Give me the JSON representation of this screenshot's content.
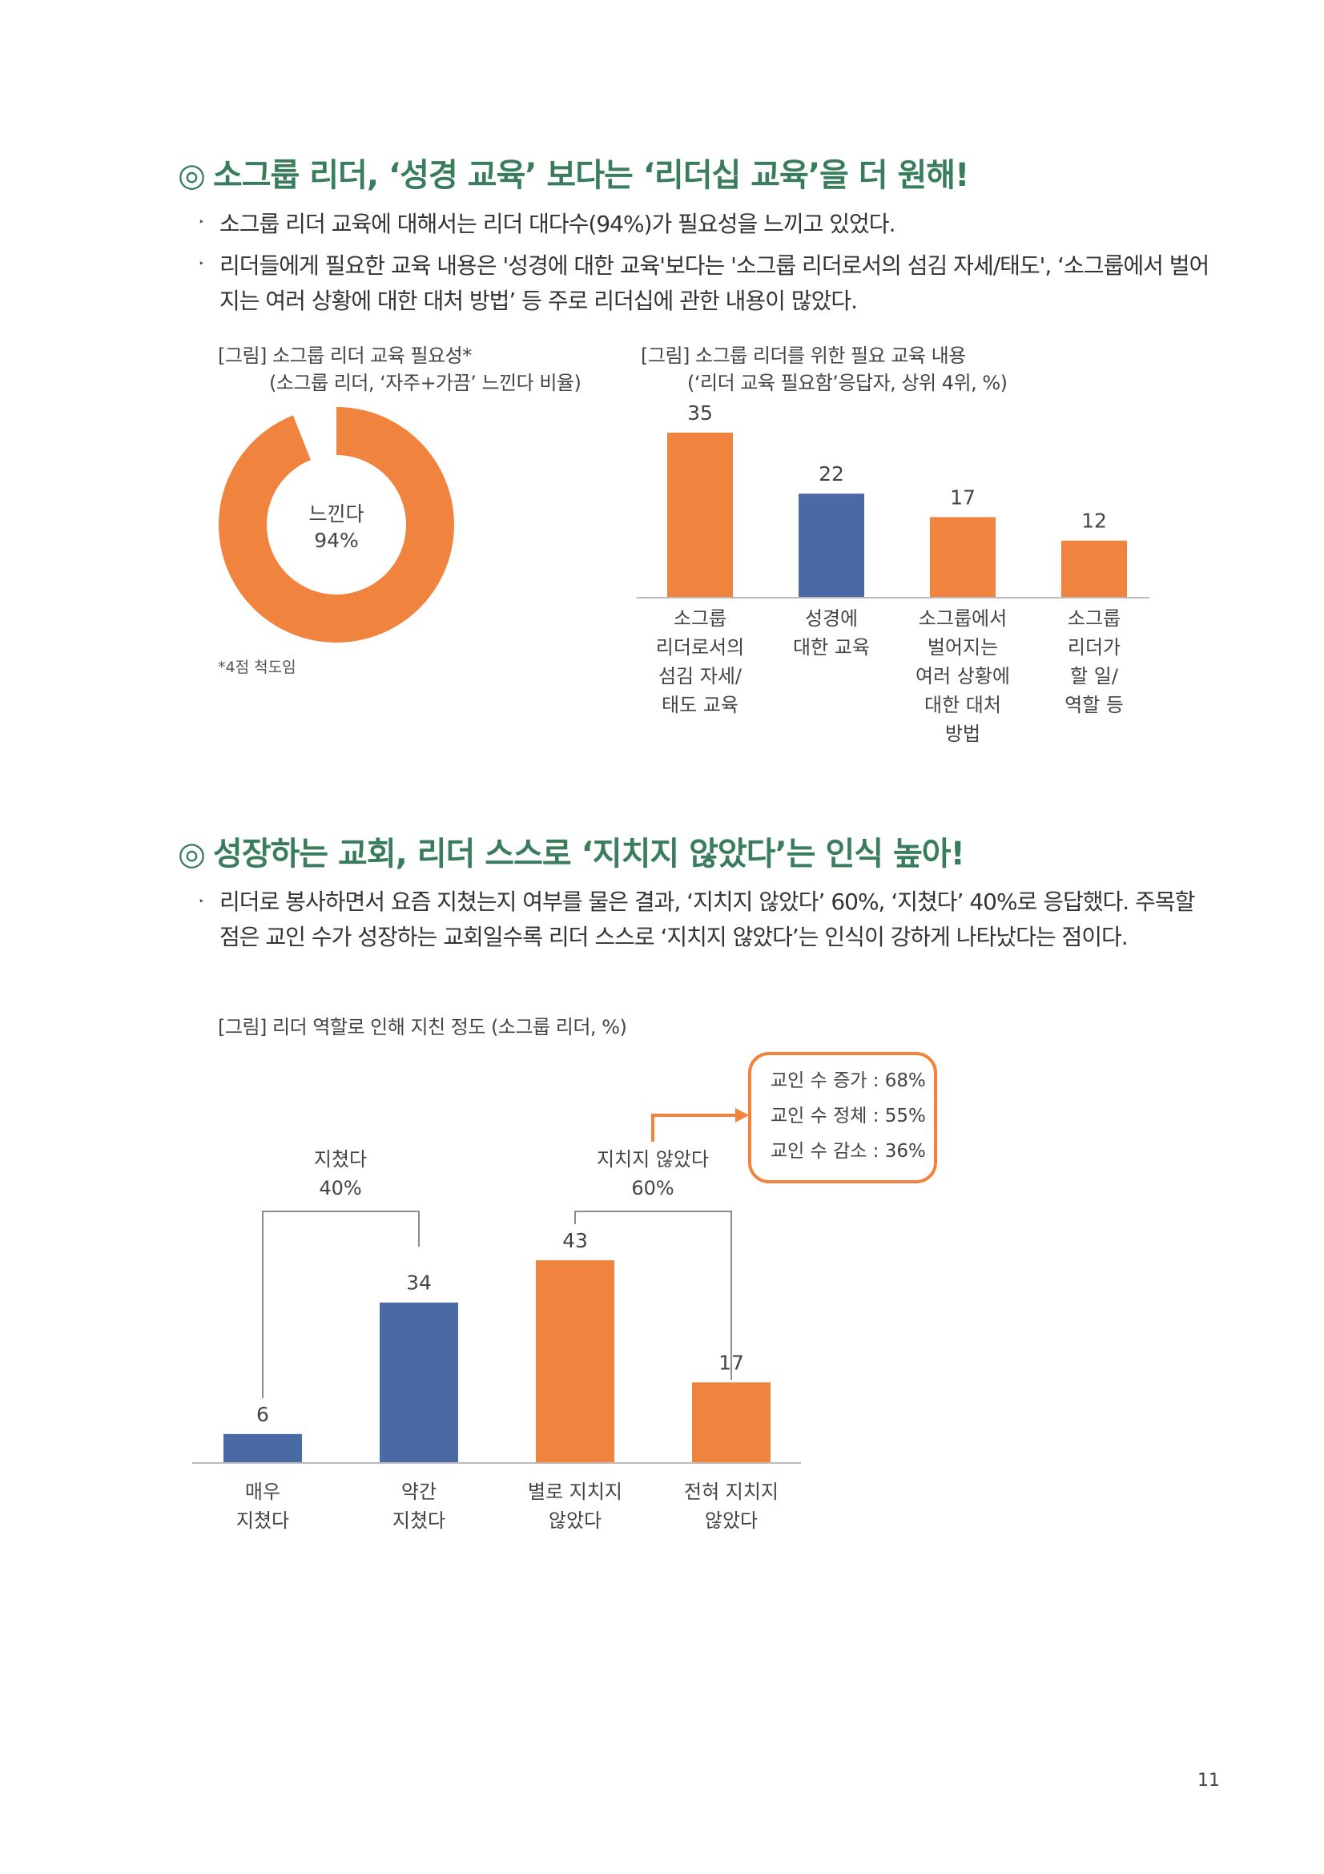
{
  "section1": {
    "mark": "◎",
    "title": "소그룹 리더, ‘성경 교육’ 보다는 ‘리더십 교육’을 더 원해!",
    "bullets": [
      "소그룹 리더 교육에 대해서는 리더 대다수(94%)가 필요성을 느끼고 있었다.",
      "리더들에게 필요한 교육 내용은 '성경에 대한 교육'보다는 '소그룹 리더로서의 섬김 자세/태도', ‘소그룹에서 벌어지는 여러 상황에 대한 대처 방법’ 등 주로 리더십에 관한 내용이 많았다."
    ],
    "bullet_glyph": "‣",
    "donut": {
      "caption_line1": "[그림] 소그룹 리더 교육 필요성*",
      "caption_line2": "(소그룹 리더, ‘자주+가끔’ 느낀다 비율)",
      "center_label": "느낀다",
      "center_value": "94%",
      "percent": 94,
      "color": "#f0843e",
      "footnote": "*4점 척도임"
    },
    "bar_chart": {
      "caption_line1": "[그림] 소그룹 리더를 위한 필요 교육 내용",
      "caption_line2": "(‘리더 교육 필요함’응답자, 상위 4위, %)"
    }
  },
  "section2": {
    "mark": "◎",
    "title": "성장하는 교회, 리더 스스로 ‘지치지 않았다’는 인식 높아!",
    "bullets": [
      "리더로 봉사하면서 요즘 지쳤는지 여부를 물은 결과, ‘지치지 않았다’ 60%, ‘지쳤다’ 40%로 응답했다. 주목할 점은 교인 수가 성장하는 교회일수록 리더 스스로 ‘지치지 않았다’는 인식이 강하게 나타났다는 점이다."
    ],
    "bullet_glyph": "‣",
    "bar_chart": {
      "caption": "[그림] 리더 역할로 인해 지친 정도 (소그룹 리더, %)",
      "group_left": {
        "label": "지쳤다",
        "value": "40%"
      },
      "group_right": {
        "label": "지치지 않았다",
        "value": "60%"
      },
      "callout": [
        "교인 수 증가 : 68%",
        "교인 수 정체 : 55%",
        "교인 수 감소 : 36%"
      ]
    }
  },
  "chart_data": [
    {
      "type": "pie",
      "title": "[그림] 소그룹 리더 교육 필요성*",
      "subtitle": "(소그룹 리더, ‘자주+가끔’ 느낀다 비율)",
      "categories": [
        "느낀다",
        ""
      ],
      "values": [
        94,
        6
      ]
    },
    {
      "type": "bar",
      "title": "[그림] 소그룹 리더를 위한 필요 교육 내용",
      "subtitle": "(‘리더 교육 필요함’응답자, 상위 4위, %)",
      "categories": [
        [
          "소그룹",
          "리더로서의",
          "섬김 자세/",
          "태도 교육"
        ],
        [
          "성경에",
          "대한 교육"
        ],
        [
          "소그룹에서",
          "벌어지는",
          "여러 상황에",
          "대한 대처",
          "방법"
        ],
        [
          "소그룹",
          "리더가",
          "할 일/",
          "역할 등"
        ]
      ],
      "values": [
        35,
        22,
        17,
        12
      ],
      "colors": [
        "#f0843e",
        "#4a6aa5",
        "#f0843e",
        "#f0843e"
      ],
      "ylim": [
        0,
        35
      ]
    },
    {
      "type": "bar",
      "title": "[그림] 리더 역할로 인해 지친 정도 (소그룹 리더, %)",
      "categories": [
        [
          "매우",
          "지쳤다"
        ],
        [
          "약간",
          "지쳤다"
        ],
        [
          "별로 지치지",
          "않았다"
        ],
        [
          "전혀 지치지",
          "않았다"
        ]
      ],
      "values": [
        6,
        34,
        43,
        17
      ],
      "colors": [
        "#4a6aa5",
        "#4a6aa5",
        "#f0843e",
        "#f0843e"
      ],
      "ylim": [
        0,
        43
      ]
    }
  ],
  "page": {
    "number": "11"
  }
}
